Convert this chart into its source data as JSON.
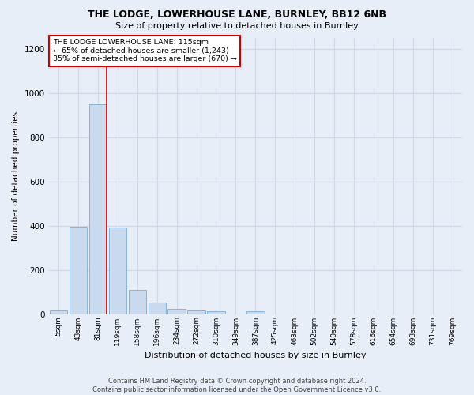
{
  "title": "THE LODGE, LOWERHOUSE LANE, BURNLEY, BB12 6NB",
  "subtitle": "Size of property relative to detached houses in Burnley",
  "xlabel": "Distribution of detached houses by size in Burnley",
  "ylabel": "Number of detached properties",
  "footer_line1": "Contains HM Land Registry data © Crown copyright and database right 2024.",
  "footer_line2": "Contains public sector information licensed under the Open Government Licence v3.0.",
  "bar_labels": [
    "5sqm",
    "43sqm",
    "81sqm",
    "119sqm",
    "158sqm",
    "196sqm",
    "234sqm",
    "272sqm",
    "310sqm",
    "349sqm",
    "387sqm",
    "425sqm",
    "463sqm",
    "502sqm",
    "540sqm",
    "578sqm",
    "616sqm",
    "654sqm",
    "693sqm",
    "731sqm",
    "769sqm"
  ],
  "bar_values": [
    15,
    395,
    950,
    390,
    110,
    52,
    25,
    15,
    12,
    0,
    12,
    0,
    0,
    0,
    0,
    0,
    0,
    0,
    0,
    0,
    0
  ],
  "bar_color": "#c9d9ee",
  "bar_edge_color": "#7aadd4",
  "grid_color": "#d0d8e8",
  "bg_color": "#e8eef8",
  "vline_color": "#cc0000",
  "vline_x": 2.43,
  "annotation_text": "THE LODGE LOWERHOUSE LANE: 115sqm\n← 65% of detached houses are smaller (1,243)\n35% of semi-detached houses are larger (670) →",
  "annotation_box_color": "#ffffff",
  "annotation_box_edge": "#cc0000",
  "ylim": [
    0,
    1250
  ],
  "yticks": [
    0,
    200,
    400,
    600,
    800,
    1000,
    1200
  ]
}
